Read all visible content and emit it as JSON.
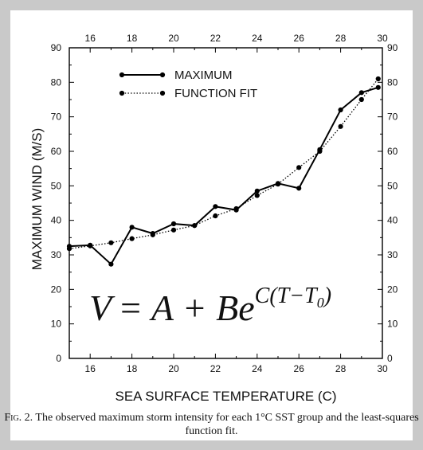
{
  "chart_data": {
    "type": "line",
    "xlabel": "SEA SURFACE TEMPERATURE (C)",
    "ylabel": "MAXIMUM WIND (M/S)",
    "xlim": [
      15,
      30
    ],
    "ylim": [
      0,
      90
    ],
    "x_ticks_bottom": [
      16,
      18,
      20,
      22,
      24,
      26,
      28,
      30
    ],
    "x_ticks_top": [
      16,
      18,
      20,
      22,
      24,
      26,
      28,
      30
    ],
    "y_ticks": [
      0,
      10,
      20,
      30,
      40,
      50,
      60,
      70,
      80,
      90
    ],
    "series": [
      {
        "name": "MAXIMUM",
        "style": "solid",
        "color": "#000000",
        "x": [
          15,
          16,
          17,
          18,
          19,
          20,
          21,
          22,
          23,
          24,
          25,
          26,
          27,
          28,
          29,
          29.8
        ],
        "y": [
          32.5,
          32.8,
          27.3,
          38.0,
          36.2,
          39.0,
          38.5,
          44.0,
          43.0,
          48.5,
          50.7,
          49.3,
          60.5,
          72.0,
          77.0,
          78.5
        ]
      },
      {
        "name": "FUNCTION FIT",
        "style": "dotted",
        "color": "#000000",
        "x": [
          15,
          16,
          17,
          18,
          19,
          20,
          21,
          22,
          23,
          24,
          25,
          26,
          27,
          28,
          29,
          29.8
        ],
        "y": [
          31.8,
          32.6,
          33.5,
          34.7,
          35.8,
          37.2,
          38.5,
          41.3,
          43.4,
          47.2,
          50.5,
          55.3,
          60.0,
          67.2,
          75.0,
          81.0
        ]
      }
    ],
    "legend_position": "top-left",
    "equation": {
      "lhs": "V",
      "rhs_main": "= A + Be",
      "exponent_prefix": "C(T−T",
      "exponent_subscript": "0",
      "exponent_suffix": ")"
    }
  },
  "caption": {
    "lead": "Fig",
    "text": ". 2. The observed maximum storm intensity for each 1°C SST group and the least-squares function fit."
  }
}
